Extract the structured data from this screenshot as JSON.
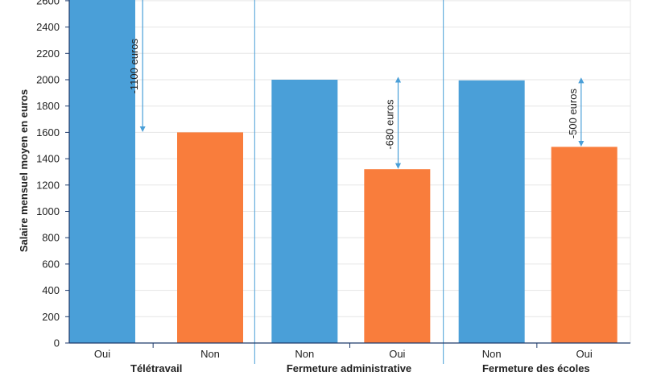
{
  "chart_data": {
    "type": "bar",
    "ylabel": "Salaire mensuel moyen en euros",
    "xlabel": "",
    "ylim": [
      0,
      2700
    ],
    "yticks": [
      0,
      200,
      400,
      600,
      800,
      1000,
      1200,
      1400,
      1600,
      1800,
      2000,
      2200,
      2400,
      2600
    ],
    "grid": true,
    "colors": {
      "blue": "#4a9fd8",
      "orange": "#f97d3c",
      "grid": "#e6e6e6",
      "axis": "#1f3a6b",
      "separator": "#4a9fd8"
    },
    "groups": [
      {
        "label": "Télétravail",
        "bars": [
          {
            "category": "Oui",
            "value": 2700,
            "color": "blue"
          },
          {
            "category": "Non",
            "value": 1600,
            "color": "orange"
          }
        ],
        "annotation": {
          "text": "-1100 euros",
          "from": 2700,
          "to": 1600
        }
      },
      {
        "label": "Fermeture administrative",
        "bars": [
          {
            "category": "Non",
            "value": 2000,
            "color": "blue"
          },
          {
            "category": "Oui",
            "value": 1320,
            "color": "orange"
          }
        ],
        "annotation": {
          "text": "-680 euros",
          "from": 2000,
          "to": 1320
        }
      },
      {
        "label": "Fermeture des écoles",
        "bars": [
          {
            "category": "Non",
            "value": 1995,
            "color": "blue"
          },
          {
            "category": "Oui",
            "value": 1490,
            "color": "orange"
          }
        ],
        "annotation": {
          "text": "-500 euros",
          "from": 1995,
          "to": 1490
        }
      }
    ]
  }
}
